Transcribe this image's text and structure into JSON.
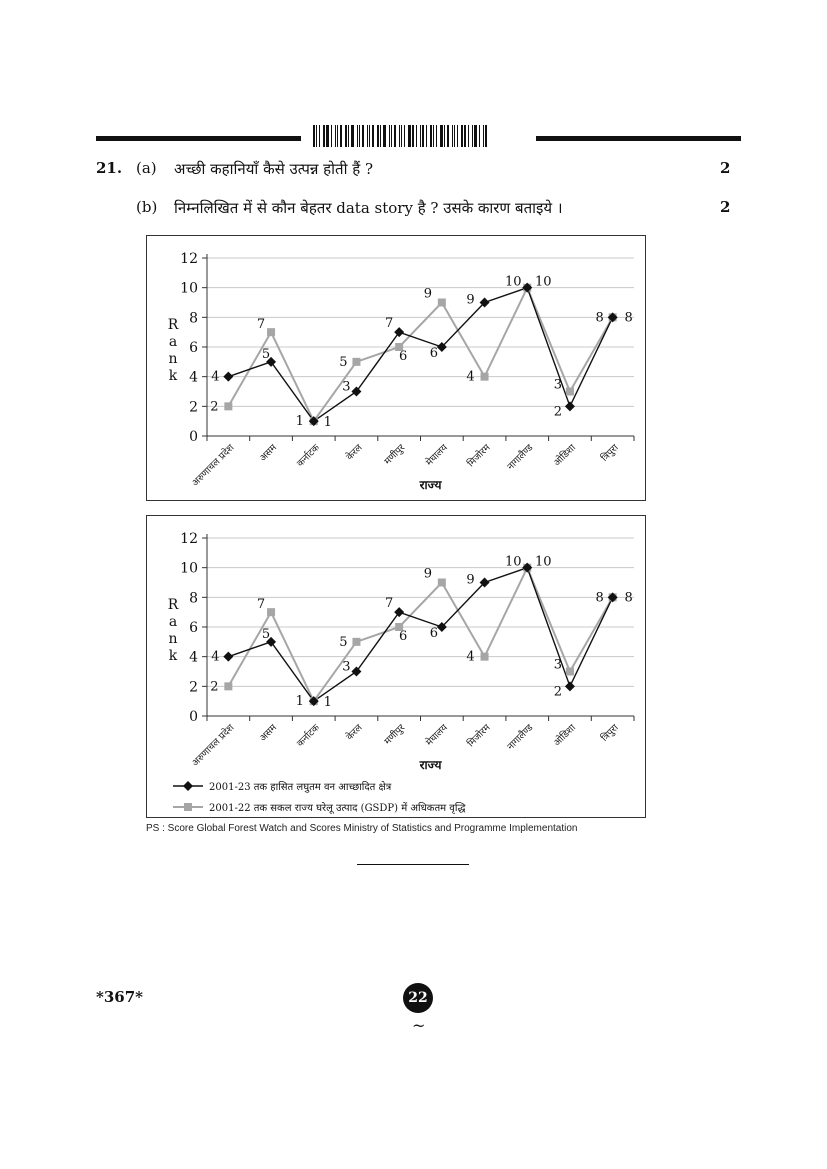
{
  "question": {
    "number": "21.",
    "a_label": "(a)",
    "a_text": "अच्छी कहानियाँ कैसे उत्पन्न होती हैं ?",
    "a_marks": "2",
    "b_label": "(b)",
    "b_text": "निम्नलिखित में से कौन बेहतर data story है ? उसके कारण बताइये ।",
    "b_marks": "2"
  },
  "chart_data": [
    {
      "type": "line",
      "xlabel": "राज्य",
      "ylabel": "Rank",
      "ylim": [
        0,
        12
      ],
      "yticks": [
        0,
        2,
        4,
        6,
        8,
        10,
        12
      ],
      "grid": true,
      "categories": [
        "अरुणाचल प्रदेश",
        "असम",
        "कर्नाटक",
        "केरल",
        "मणीपुर",
        "मेघालय",
        "मिजोरम",
        "नागालैण्ड",
        "ओडिशा",
        "त्रिपुरा"
      ],
      "series": [
        {
          "values": [
            4,
            5,
            1,
            3,
            7,
            6,
            9,
            10,
            2,
            8
          ],
          "color": "#111111",
          "marker": "diamond"
        },
        {
          "values": [
            2,
            7,
            1,
            5,
            6,
            9,
            4,
            10,
            3,
            8
          ],
          "color": "#a6a6a6",
          "marker": "square"
        }
      ]
    },
    {
      "type": "line",
      "xlabel": "राज्य",
      "ylabel": "Rank",
      "ylim": [
        0,
        12
      ],
      "yticks": [
        0,
        2,
        4,
        6,
        8,
        10,
        12
      ],
      "grid": true,
      "categories": [
        "अरुणाचल प्रदेश",
        "असम",
        "कर्नाटक",
        "केरल",
        "मणीपुर",
        "मेघालय",
        "मिजोरम",
        "नागालैण्ड",
        "ओडिशा",
        "त्रिपुरा"
      ],
      "legend_position": "bottom-left",
      "series": [
        {
          "name": "2001-23 तक हासित लघुतम वन आच्छादित क्षेत्र",
          "values": [
            4,
            5,
            1,
            3,
            7,
            6,
            9,
            10,
            2,
            8
          ],
          "color": "#111111",
          "marker": "diamond"
        },
        {
          "name": "2001-22 तक सकल राज्य घरेलू उत्पाद (GSDP) में अधिकतम वृद्धि",
          "values": [
            2,
            7,
            1,
            5,
            6,
            9,
            4,
            10,
            3,
            8
          ],
          "color": "#a6a6a6",
          "marker": "square"
        }
      ]
    }
  ],
  "source_note": "PS : Score Global Forest Watch and Scores Ministry of Statistics and Programme Implementation",
  "footer": {
    "code": "*367*",
    "page_number": "22",
    "tilde": "~"
  }
}
